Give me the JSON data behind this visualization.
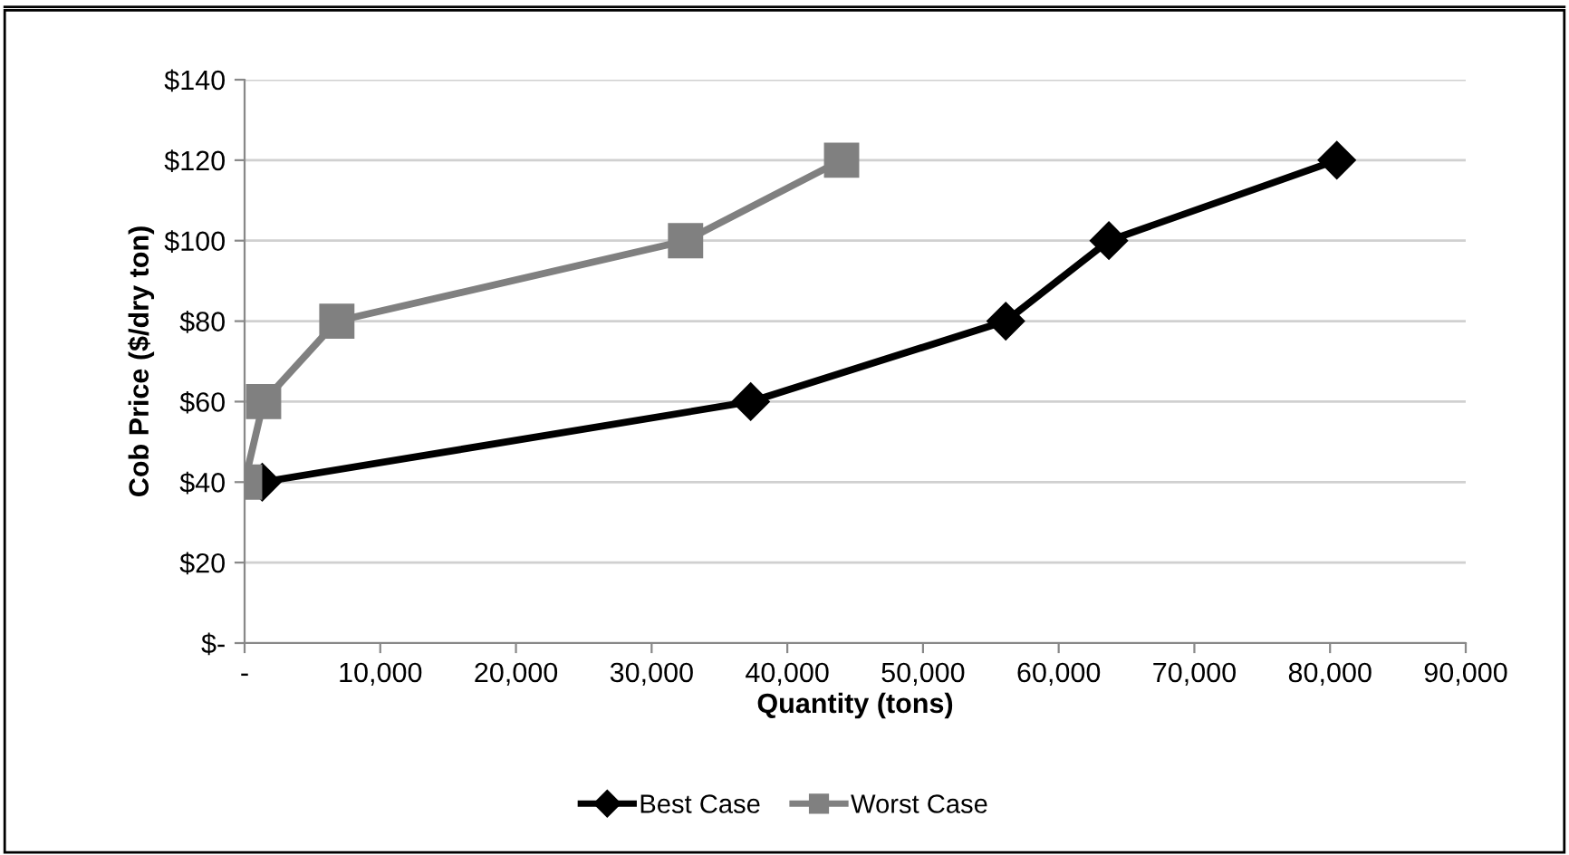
{
  "chart_data": {
    "type": "line",
    "xlabel": "Quantity (tons)",
    "ylabel": "Cob Price ($/dry ton)",
    "series": [
      {
        "name": "Best Case",
        "color": "#000000",
        "marker": "diamond",
        "x": [
          1300,
          37300,
          56100,
          63700,
          80500
        ],
        "values": [
          40,
          60,
          80,
          100,
          120
        ]
      },
      {
        "name": "Worst Case",
        "color": "#808080",
        "marker": "square",
        "x": [
          0,
          1400,
          6800,
          32500,
          44000
        ],
        "values": [
          40,
          60,
          80,
          100,
          120
        ]
      }
    ],
    "xlim": [
      0,
      90000
    ],
    "ylim": [
      0,
      140
    ],
    "xticks": [
      {
        "value": 0,
        "label": "-"
      },
      {
        "value": 10000,
        "label": "10,000"
      },
      {
        "value": 20000,
        "label": "20,000"
      },
      {
        "value": 30000,
        "label": "30,000"
      },
      {
        "value": 40000,
        "label": "40,000"
      },
      {
        "value": 50000,
        "label": "50,000"
      },
      {
        "value": 60000,
        "label": "60,000"
      },
      {
        "value": 70000,
        "label": "70,000"
      },
      {
        "value": 80000,
        "label": "80,000"
      },
      {
        "value": 90000,
        "label": "90,000"
      }
    ],
    "yticks": [
      {
        "value": 0,
        "label": "$-"
      },
      {
        "value": 20,
        "label": "$20"
      },
      {
        "value": 40,
        "label": "$40"
      },
      {
        "value": 60,
        "label": "$60"
      },
      {
        "value": 80,
        "label": "$80"
      },
      {
        "value": 100,
        "label": "$100"
      },
      {
        "value": 120,
        "label": "$120"
      },
      {
        "value": 140,
        "label": "$140"
      }
    ],
    "grid": "y",
    "legend": "bottom",
    "line_style": "solid"
  }
}
